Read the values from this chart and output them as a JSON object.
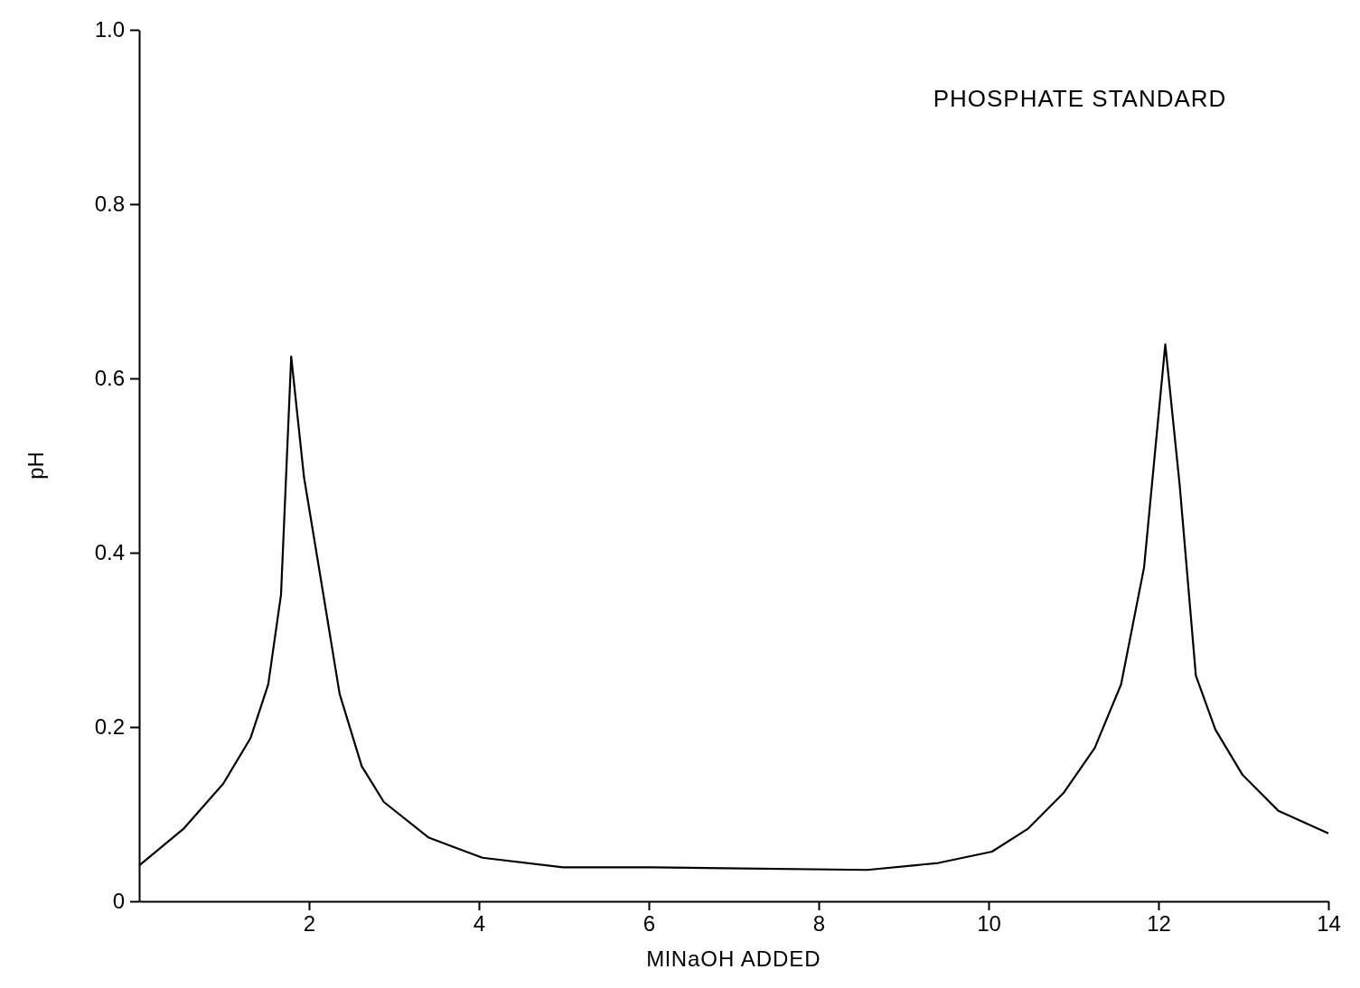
{
  "chart_data": {
    "type": "line",
    "title": "PHOSPHATE STANDARD",
    "xlabel": "MlNaOH ADDED",
    "ylabel": "pH",
    "xlim": [
      0,
      14
    ],
    "ylim": [
      0,
      1
    ],
    "xticks": [
      2,
      4,
      6,
      8,
      10,
      12,
      14
    ],
    "yticks": [
      0,
      0.2,
      0.4,
      0.6,
      0.8,
      {
        "value": 1,
        "label": "1.0"
      }
    ],
    "grid": false,
    "marker": "none",
    "line_style": "solid",
    "series": [
      {
        "color": "#000000",
        "x": [
          0,
          0.52,
          0.99,
          1.31,
          1.52,
          1.67,
          1.79,
          1.94,
          2.15,
          2.36,
          2.62,
          2.88,
          3.41,
          4.04,
          4.99,
          6.04,
          6.88,
          8.57,
          9.41,
          10.04,
          10.46,
          10.88,
          11.25,
          11.56,
          11.83,
          12.08,
          12.25,
          12.44,
          12.67,
          12.99,
          13.41,
          14
        ],
        "values": [
          0.041,
          0.083,
          0.135,
          0.187,
          0.249,
          0.352,
          0.625,
          0.487,
          0.363,
          0.238,
          0.155,
          0.114,
          0.073,
          0.05,
          0.039,
          0.039,
          0.038,
          0.036,
          0.044,
          0.057,
          0.083,
          0.124,
          0.176,
          0.249,
          0.383,
          0.639,
          0.477,
          0.259,
          0.197,
          0.145,
          0.104,
          0.078
        ]
      }
    ]
  }
}
